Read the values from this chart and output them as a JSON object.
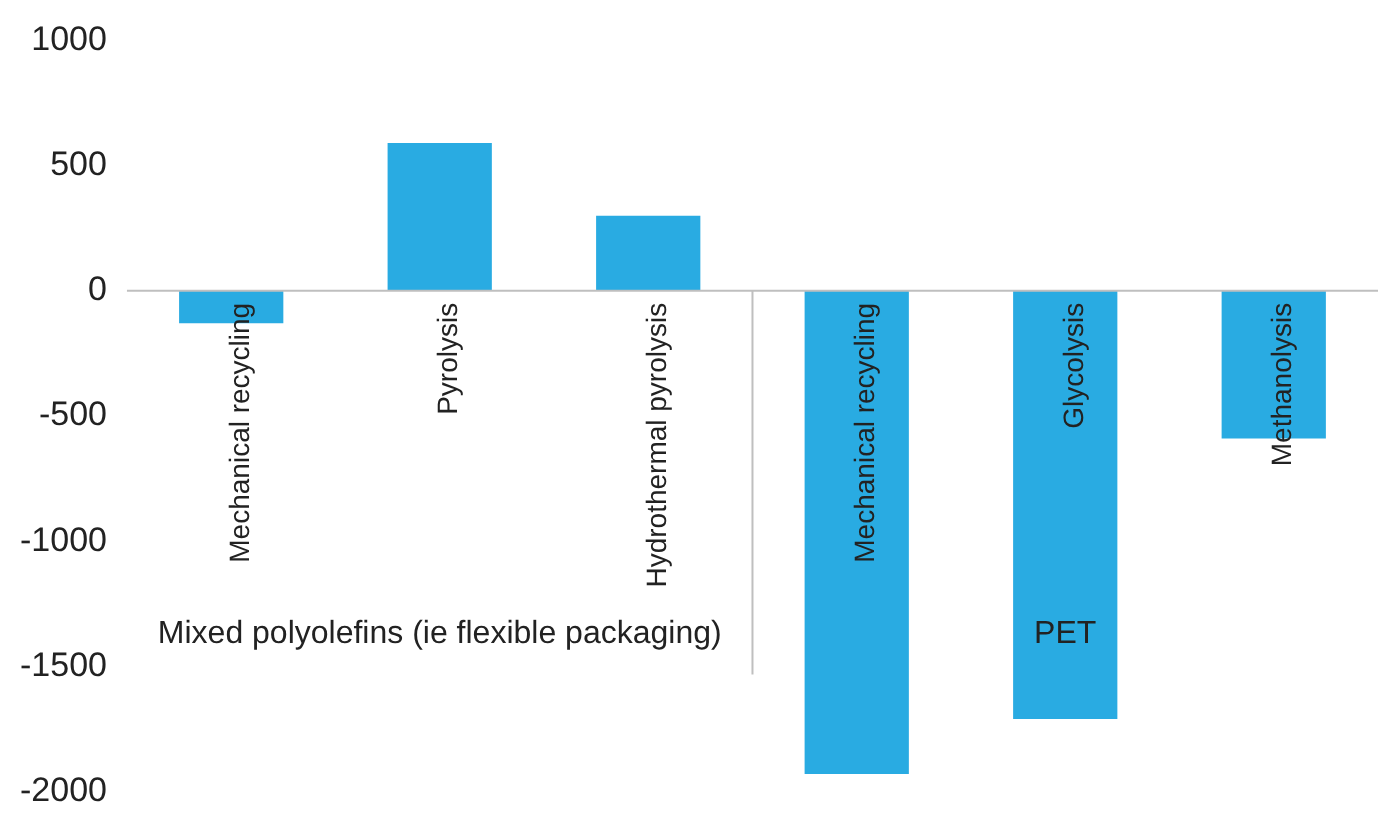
{
  "chart_data": {
    "type": "bar",
    "categories": [
      "Mechanical recycling",
      "Pyrolysis",
      "Hydrothermal pyrolysis",
      "Mechanical recycling",
      "Glycolysis",
      "Methanolysis"
    ],
    "values": [
      -130,
      590,
      300,
      -1930,
      -1710,
      -590
    ],
    "color": "#29abe2",
    "ylim": [
      -2000,
      1000
    ],
    "yticks": [
      -2000,
      -1500,
      -1000,
      -500,
      0,
      500,
      1000
    ],
    "grid": false,
    "legend": false,
    "annotations": [
      "Mixed polyolefins (ie flexible packaging)",
      "PET"
    ]
  }
}
